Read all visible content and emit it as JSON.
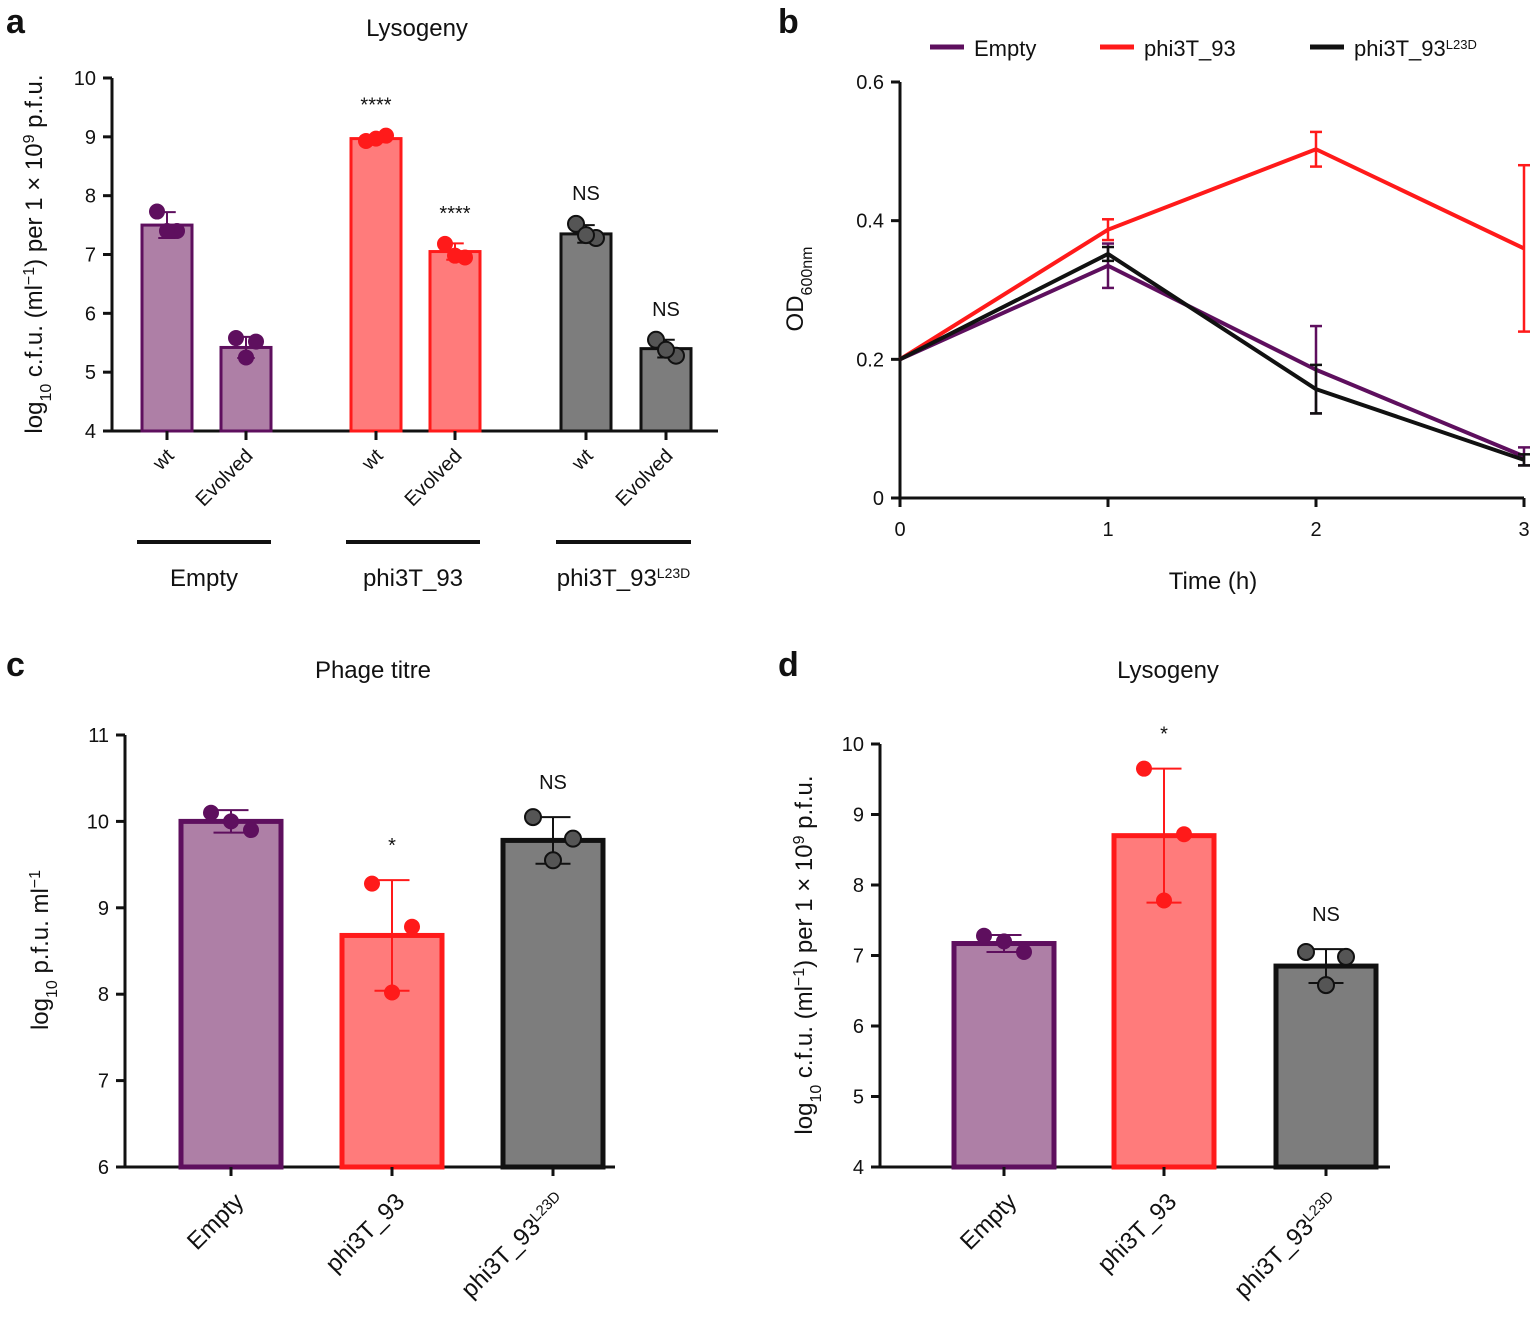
{
  "colors": {
    "empty_fill": "#ae7fa6",
    "empty_stroke": "#5e0f5e",
    "phi_fill": "#ff7b7b",
    "phi_stroke": "#ff1a1a",
    "l23d_fill": "#7d7d7d",
    "l23d_stroke": "#111111"
  },
  "chart_data": [
    {
      "panel": "a",
      "type": "bar",
      "title": "Lysogeny",
      "ylabel_parts": [
        "log",
        "10",
        " c.f.u. (ml",
        "−1",
        ") per 1 × 10",
        "9",
        " p.f.u."
      ],
      "ylim": [
        4,
        10
      ],
      "yticks": [
        "4",
        "5",
        "6",
        "7",
        "8",
        "9",
        "10"
      ],
      "groups": [
        {
          "name": "Empty",
          "name_sup": "",
          "color": "empty",
          "bars": [
            {
              "label": "wt",
              "value": 7.5,
              "err": 0.22,
              "points": [
                7.73,
                7.4,
                7.4
              ],
              "sig": ""
            },
            {
              "label": "Evolved",
              "value": 5.42,
              "err": 0.18,
              "points": [
                5.58,
                5.52,
                5.25
              ],
              "sig": ""
            }
          ]
        },
        {
          "name": "phi3T_93",
          "name_sup": "",
          "color": "phi",
          "bars": [
            {
              "label": "wt",
              "value": 8.97,
              "err": 0.06,
              "points": [
                8.93,
                9.02,
                8.97
              ],
              "sig": "****"
            },
            {
              "label": "Evolved",
              "value": 7.05,
              "err": 0.14,
              "points": [
                7.18,
                6.95,
                6.98
              ],
              "sig": "****"
            }
          ]
        },
        {
          "name": "phi3T_93",
          "name_sup": "L23D",
          "color": "l23d",
          "bars": [
            {
              "label": "wt",
              "value": 7.35,
              "err": 0.15,
              "points": [
                7.52,
                7.28,
                7.33
              ],
              "sig": "NS"
            },
            {
              "label": "Evolved",
              "value": 5.4,
              "err": 0.15,
              "points": [
                5.55,
                5.28,
                5.38
              ],
              "sig": "NS"
            }
          ]
        }
      ]
    },
    {
      "panel": "b",
      "type": "line",
      "xlabel": "Time (h)",
      "ylabel_main": "OD",
      "ylabel_sub": "600nm",
      "x": [
        0,
        1,
        2,
        3
      ],
      "xticks": [
        "0",
        "1",
        "2",
        "3"
      ],
      "xlim": [
        0,
        3
      ],
      "ylim": [
        0,
        0.6
      ],
      "yticks": [
        "0",
        "0.2",
        "0.4",
        "0.6"
      ],
      "series": [
        {
          "name": "Empty",
          "sup": "",
          "color": "#5e0f5e",
          "values": [
            0.2,
            0.335,
            0.185,
            0.06
          ],
          "err": [
            0,
            0.032,
            0.063,
            0.013
          ]
        },
        {
          "name": "phi3T_93",
          "sup": "",
          "color": "#ff1a1a",
          "values": [
            0.2,
            0.387,
            0.503,
            0.36
          ],
          "err": [
            0,
            0.015,
            0.025,
            0.12
          ]
        },
        {
          "name": "phi3T_93",
          "sup": "L23D",
          "color": "#111111",
          "values": [
            0.2,
            0.352,
            0.157,
            0.055
          ],
          "err": [
            0,
            0.01,
            0.035,
            0.008
          ]
        }
      ]
    },
    {
      "panel": "c",
      "type": "bar",
      "title": "Phage titre",
      "ylabel_parts": [
        "log",
        "10",
        " p.f.u. ml",
        "−1"
      ],
      "ylim": [
        6,
        11
      ],
      "yticks": [
        "6",
        "7",
        "8",
        "9",
        "10",
        "11"
      ],
      "bars": [
        {
          "label": "Empty",
          "sup": "",
          "color": "empty",
          "value": 10.0,
          "err": 0.13,
          "points": [
            10.1,
            9.9,
            10.0
          ],
          "sig": ""
        },
        {
          "label": "phi3T_93",
          "sup": "",
          "color": "phi",
          "value": 8.68,
          "err": 0.64,
          "points": [
            9.28,
            8.78,
            8.02
          ],
          "sig": "*"
        },
        {
          "label": "phi3T_93",
          "sup": "L23D",
          "color": "l23d",
          "value": 9.78,
          "err": 0.27,
          "points": [
            10.05,
            9.8,
            9.55
          ],
          "sig": "NS"
        }
      ]
    },
    {
      "panel": "d",
      "type": "bar",
      "title": "Lysogeny",
      "ylabel_parts": [
        "log",
        "10",
        " c.f.u. (ml",
        "−1",
        ") per 1 × 10",
        "9",
        " p.f.u."
      ],
      "ylim": [
        4,
        10
      ],
      "yticks": [
        "4",
        "5",
        "6",
        "7",
        "8",
        "9",
        "10"
      ],
      "bars": [
        {
          "label": "Empty",
          "sup": "",
          "color": "empty",
          "value": 7.17,
          "err": 0.12,
          "points": [
            7.28,
            7.05,
            7.2
          ],
          "sig": ""
        },
        {
          "label": "phi3T_93",
          "sup": "",
          "color": "phi",
          "value": 8.7,
          "err": 0.95,
          "points": [
            9.65,
            8.72,
            7.78
          ],
          "sig": "*"
        },
        {
          "label": "phi3T_93",
          "sup": "L23D",
          "color": "l23d",
          "value": 6.85,
          "err": 0.24,
          "points": [
            7.05,
            6.98,
            6.58
          ],
          "sig": "NS"
        }
      ]
    }
  ]
}
